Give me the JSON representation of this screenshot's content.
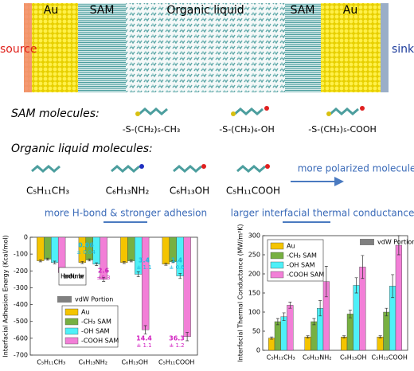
{
  "simulation": {
    "labels": [
      "Au",
      "SAM",
      "Organic liquid",
      "SAM",
      "Au"
    ],
    "source": "source",
    "sink": "sink"
  },
  "sam": {
    "heading": "SAM molecules:",
    "molecules": [
      "-S-(CH₂)₅-CH₃",
      "-S-(CH₂)₆-OH",
      "-S-(CH₂)₅-COOH"
    ]
  },
  "liquid": {
    "heading": "Organic liquid molecules:",
    "molecules": [
      "C₅H₁₁CH₃",
      "C₆H₁₃NH₂",
      "C₆H₁₃OH",
      "C₅H₁₁COOH"
    ],
    "trend": "more polarized molecule"
  },
  "trends": [
    "more H-bond & stronger adhesion",
    "larger interfacial thermal conductance"
  ],
  "chart_data": [
    {
      "type": "bar",
      "ylabel": "Interfacial Adhesion Energy (Kcal/mol)",
      "categories": [
        "C₅H₁₁CH₃",
        "C₆H₁₃NH₂",
        "C₆H₁₃OH",
        "C₅H₁₁COOH"
      ],
      "series": [
        {
          "name": "Au",
          "color": "#f4c400",
          "values": [
            -140,
            -150,
            -150,
            -160
          ],
          "errors": [
            6,
            6,
            6,
            6
          ]
        },
        {
          "name": "-CH₃ SAM",
          "color": "#77b041",
          "values": [
            -130,
            -135,
            -140,
            -145
          ],
          "errors": [
            6,
            6,
            6,
            6
          ]
        },
        {
          "name": "-OH SAM",
          "color": "#4ef0f8",
          "values": [
            -150,
            -160,
            -220,
            -230
          ],
          "errors": [
            8,
            8,
            15,
            15
          ]
        },
        {
          "name": "-COOH SAM",
          "color": "#f27fd7",
          "values": [
            -210,
            -250,
            -550,
            -590
          ],
          "errors": [
            10,
            12,
            25,
            25
          ]
        }
      ],
      "vdw_label": "vdW Portion",
      "vdw_color": "#808080",
      "hbond_label": "H-bond Number",
      "annotations": [
        {
          "text": "0.06",
          "sub": "± 0.04",
          "color": "#1ab8e0"
        },
        {
          "text": "2.6",
          "sub": "±0.3",
          "color": "#d21fc0"
        },
        {
          "text": "3.4",
          "sub": "± 1.1",
          "color": "#1ab8e0"
        },
        {
          "text": "1.4",
          "sub": "± 0.6",
          "color": "#1ab8e0"
        },
        {
          "text": "14.4",
          "sub": "± 1.1",
          "color": "#d21fc0"
        },
        {
          "text": "36.3",
          "sub": "± 1.2",
          "color": "#d21fc0"
        }
      ],
      "ylim": [
        -700,
        0
      ],
      "yticks": [
        -700,
        -600,
        -500,
        -400,
        -300,
        -200,
        -100,
        0
      ]
    },
    {
      "type": "bar",
      "ylabel": "Interfacial Thermal Conductance (MW/m²K)",
      "categories": [
        "C₅H₁₁CH₃",
        "C₆H₁₃NH₂",
        "C₆H₁₃OH",
        "C₅H₁₁COOH"
      ],
      "series": [
        {
          "name": "Au",
          "color": "#f4c400",
          "values": [
            32,
            35,
            35,
            35
          ],
          "errors": [
            3,
            3,
            3,
            3
          ]
        },
        {
          "name": "-CH₃ SAM",
          "color": "#77b041",
          "values": [
            75,
            75,
            95,
            100
          ],
          "errors": [
            8,
            8,
            10,
            10
          ]
        },
        {
          "name": "-OH SAM",
          "color": "#4ef0f8",
          "values": [
            88,
            110,
            170,
            168
          ],
          "errors": [
            10,
            20,
            20,
            30
          ]
        },
        {
          "name": "-COOH SAM",
          "color": "#f27fd7",
          "values": [
            118,
            180,
            218,
            275
          ],
          "errors": [
            8,
            40,
            30,
            25
          ]
        }
      ],
      "vdw_label": "vdW Portion",
      "vdw_color": "#808080",
      "ylim": [
        0,
        300
      ],
      "yticks": [
        0,
        50,
        100,
        150,
        200,
        250,
        300
      ]
    }
  ]
}
